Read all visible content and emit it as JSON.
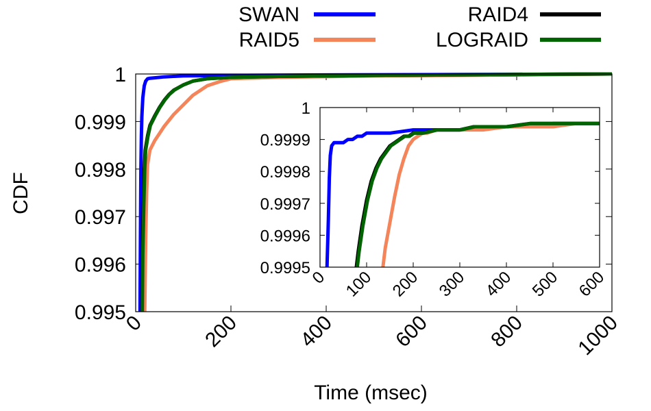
{
  "chart_data": [
    {
      "type": "line",
      "role": "main",
      "title": "",
      "xlabel": "Time (msec)",
      "ylabel": "CDF",
      "xlim": [
        0,
        1000
      ],
      "ylim": [
        0.995,
        1
      ],
      "x_ticks": [
        "0",
        "200",
        "400",
        "600",
        "800",
        "1000"
      ],
      "y_ticks": [
        "0.995",
        "0.996",
        "0.997",
        "0.998",
        "0.999",
        "1"
      ],
      "grid": false,
      "legend_position": "top",
      "series": [
        {
          "name": "SWAN",
          "color": "#0000ff",
          "x": [
            9,
            10,
            11,
            12,
            13,
            15,
            18,
            21,
            25,
            30,
            40,
            60,
            100,
            200,
            400,
            1000
          ],
          "y": [
            0.995,
            0.9965,
            0.998,
            0.9987,
            0.9991,
            0.9995,
            0.99975,
            0.99985,
            0.9999,
            0.99991,
            0.99992,
            0.99994,
            0.99996,
            0.99997,
            0.99998,
            1.0
          ]
        },
        {
          "name": "RAID5",
          "color": "#f4845a",
          "x": [
            19,
            21,
            23,
            25,
            30,
            40,
            50,
            60,
            80,
            100,
            120,
            150,
            180,
            200,
            300,
            500,
            800,
            1000
          ],
          "y": [
            0.995,
            0.9965,
            0.9975,
            0.9981,
            0.9984,
            0.9986,
            0.99875,
            0.9989,
            0.99915,
            0.99935,
            0.99955,
            0.99975,
            0.99985,
            0.9999,
            0.99993,
            0.99996,
            0.99998,
            1.0
          ]
        },
        {
          "name": "RAID4",
          "color": "#000000",
          "x": [
            13,
            14,
            16,
            18,
            20,
            25,
            30,
            40,
            50,
            60,
            70,
            80,
            100,
            120,
            150,
            200,
            300,
            500,
            800,
            1000
          ],
          "y": [
            0.995,
            0.9962,
            0.9972,
            0.998,
            0.9984,
            0.9987,
            0.99892,
            0.99912,
            0.9993,
            0.99945,
            0.99957,
            0.99966,
            0.99977,
            0.99985,
            0.9999,
            0.99993,
            0.99995,
            0.99997,
            0.99999,
            1.0
          ]
        },
        {
          "name": "LOGRAID",
          "color": "#006400",
          "x": [
            14,
            15,
            17,
            19,
            21,
            26,
            31,
            41,
            51,
            61,
            71,
            81,
            100,
            120,
            150,
            200,
            300,
            500,
            800,
            1000
          ],
          "y": [
            0.995,
            0.9962,
            0.9972,
            0.998,
            0.9984,
            0.9987,
            0.99892,
            0.99912,
            0.9993,
            0.99945,
            0.99957,
            0.99966,
            0.99977,
            0.99985,
            0.9999,
            0.99993,
            0.99995,
            0.99997,
            0.99999,
            1.0
          ]
        }
      ]
    },
    {
      "type": "line",
      "role": "inset",
      "title": "",
      "xlabel": "",
      "ylabel": "",
      "xlim": [
        0,
        600
      ],
      "ylim": [
        0.9995,
        1
      ],
      "x_ticks": [
        "0",
        "100",
        "200",
        "300",
        "400",
        "500",
        "600"
      ],
      "y_ticks": [
        "0.9995",
        "0.9996",
        "0.9997",
        "0.9998",
        "0.9999",
        "1"
      ],
      "grid": false,
      "series": [
        {
          "name": "SWAN",
          "color": "#0000ff",
          "x": [
            15,
            18,
            20,
            22,
            25,
            30,
            40,
            50,
            60,
            70,
            80,
            90,
            100,
            120,
            150,
            200,
            250,
            300,
            350,
            400,
            450,
            500,
            550,
            600
          ],
          "y": [
            0.9995,
            0.99965,
            0.99978,
            0.99985,
            0.99988,
            0.99989,
            0.99989,
            0.99989,
            0.9999,
            0.9999,
            0.99991,
            0.99991,
            0.99992,
            0.99992,
            0.99992,
            0.99993,
            0.99993,
            0.99993,
            0.99994,
            0.99994,
            0.99994,
            0.99995,
            0.99995,
            0.99995
          ]
        },
        {
          "name": "RAID5",
          "color": "#f4845a",
          "x": [
            135,
            140,
            150,
            160,
            170,
            180,
            190,
            200,
            210,
            220,
            230,
            250,
            280,
            300,
            350,
            400,
            450,
            500,
            550
          ],
          "y": [
            0.9995,
            0.99956,
            0.99964,
            0.99972,
            0.99979,
            0.99984,
            0.99988,
            0.9999,
            0.99991,
            0.99992,
            0.99992,
            0.99993,
            0.99993,
            0.99993,
            0.99993,
            0.99994,
            0.99994,
            0.99994,
            0.99995
          ]
        },
        {
          "name": "RAID4",
          "color": "#000000",
          "x": [
            78,
            82,
            90,
            100,
            110,
            120,
            130,
            140,
            150,
            160,
            170,
            180,
            190,
            200,
            220,
            250,
            280,
            300,
            330,
            350,
            400,
            450,
            500,
            550,
            600
          ],
          "y": [
            0.9995,
            0.99955,
            0.99963,
            0.99971,
            0.99977,
            0.99981,
            0.99984,
            0.99986,
            0.99988,
            0.99989,
            0.9999,
            0.99991,
            0.99991,
            0.99992,
            0.99992,
            0.99993,
            0.99993,
            0.99993,
            0.99994,
            0.99994,
            0.99994,
            0.99995,
            0.99995,
            0.99995,
            0.99995
          ]
        },
        {
          "name": "LOGRAID",
          "color": "#006400",
          "x": [
            80,
            84,
            92,
            102,
            112,
            122,
            132,
            142,
            152,
            162,
            172,
            182,
            192,
            202,
            222,
            252,
            282,
            302,
            332,
            352,
            402,
            452,
            502,
            552,
            600
          ],
          "y": [
            0.9995,
            0.99955,
            0.99963,
            0.99971,
            0.99977,
            0.99981,
            0.99984,
            0.99986,
            0.99988,
            0.99989,
            0.9999,
            0.99991,
            0.99991,
            0.99992,
            0.99992,
            0.99993,
            0.99993,
            0.99993,
            0.99994,
            0.99994,
            0.99994,
            0.99995,
            0.99995,
            0.99995,
            0.99995
          ]
        }
      ]
    }
  ]
}
